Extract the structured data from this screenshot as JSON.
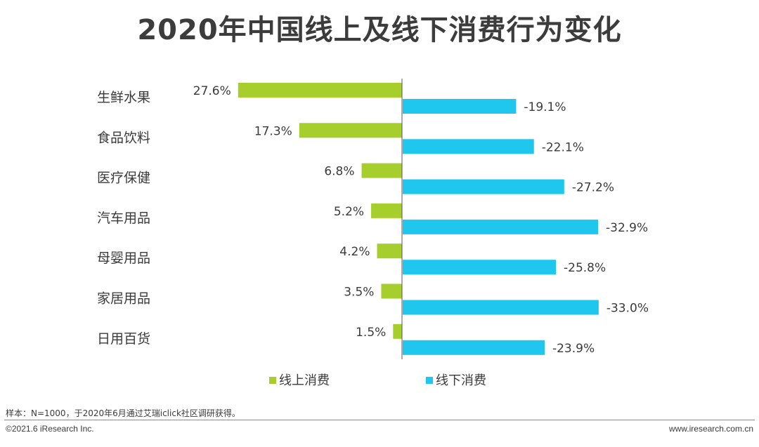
{
  "chart_data": {
    "type": "bar",
    "orientation": "horizontal-diverging",
    "title": "2020年中国线上及线下消费行为变化",
    "categories": [
      "生鲜水果",
      "食品饮料",
      "医疗保健",
      "汽车用品",
      "母婴用品",
      "家居用品",
      "日用百货"
    ],
    "series": [
      {
        "name": "线上消费",
        "color": "#a6cf2d",
        "values": [
          27.6,
          17.3,
          6.8,
          5.2,
          4.2,
          3.5,
          1.5
        ],
        "labels": [
          "27.6%",
          "17.3%",
          "6.8%",
          "5.2%",
          "4.2%",
          "3.5%",
          "1.5%"
        ]
      },
      {
        "name": "线下消费",
        "color": "#1fc6ee",
        "values": [
          -19.1,
          -22.1,
          -27.2,
          -32.9,
          -25.8,
          -33.0,
          -23.9
        ],
        "labels": [
          "-19.1%",
          "-22.1%",
          "-27.2%",
          "-32.9%",
          "-25.8%",
          "-33.0%",
          "-23.9%"
        ]
      }
    ],
    "xlabel": "",
    "ylabel": "",
    "legend": "bottom"
  },
  "footer": {
    "note": "样本：N=1000，于2020年6月通过艾瑞iclick社区调研获得。",
    "copyright": "©2021.6 iResearch Inc.",
    "website": "www.iresearch.com.cn"
  }
}
